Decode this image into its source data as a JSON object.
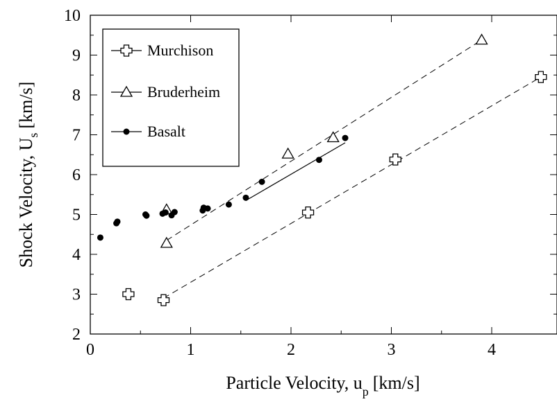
{
  "chart_data": {
    "type": "scatter",
    "xlabel": "Particle Velocity, u",
    "xlabel_sub": "p",
    "xlabel_unit": "[km/s]",
    "ylabel": "Shock Velocity, U",
    "ylabel_sub": "s",
    "ylabel_unit": "[km/s]",
    "xlim": [
      0,
      4.5
    ],
    "ylim": [
      2,
      10
    ],
    "xticks": [
      0,
      1,
      2,
      3,
      4
    ],
    "yticks": [
      2,
      3,
      4,
      5,
      6,
      7,
      8,
      9,
      10
    ],
    "grid": false,
    "legend_position": "top-left",
    "series": [
      {
        "name": "Murchison",
        "marker": "open-cross",
        "points": [
          [
            0.38,
            3.0
          ],
          [
            0.73,
            2.85
          ],
          [
            2.17,
            5.05
          ],
          [
            3.04,
            6.38
          ],
          [
            4.49,
            8.45
          ]
        ]
      },
      {
        "name": "Bruderheim",
        "marker": "open-triangle",
        "points": [
          [
            0.76,
            4.28
          ],
          [
            0.76,
            5.12
          ],
          [
            1.97,
            6.52
          ],
          [
            2.42,
            6.93
          ],
          [
            3.9,
            9.38
          ]
        ]
      },
      {
        "name": "Basalt",
        "marker": "filled-circle",
        "points": [
          [
            0.1,
            4.42
          ],
          [
            0.26,
            4.78
          ],
          [
            0.27,
            4.82
          ],
          [
            0.55,
            5.0
          ],
          [
            0.56,
            4.97
          ],
          [
            0.72,
            5.02
          ],
          [
            0.75,
            5.05
          ],
          [
            0.81,
            4.98
          ],
          [
            0.84,
            5.06
          ],
          [
            1.12,
            5.1
          ],
          [
            1.13,
            5.17
          ],
          [
            1.17,
            5.15
          ],
          [
            1.38,
            5.25
          ],
          [
            1.55,
            5.42
          ],
          [
            1.71,
            5.82
          ],
          [
            2.28,
            6.37
          ],
          [
            2.54,
            6.92
          ]
        ]
      }
    ],
    "fit_lines": [
      {
        "series": "Murchison",
        "style": "dashed",
        "x": [
          0.73,
          4.49
        ],
        "y": [
          2.9,
          8.45
        ]
      },
      {
        "series": "Bruderheim",
        "style": "dashed",
        "x": [
          0.76,
          3.9
        ],
        "y": [
          4.35,
          9.38
        ]
      },
      {
        "series": "Basalt",
        "style": "solid",
        "x": [
          1.55,
          2.54
        ],
        "y": [
          5.35,
          6.8
        ]
      }
    ]
  }
}
